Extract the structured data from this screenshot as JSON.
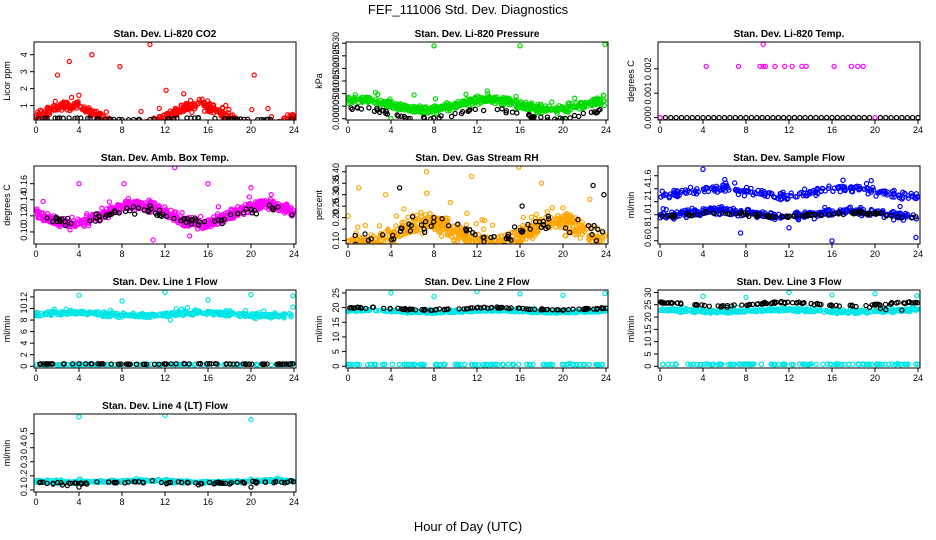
{
  "figure": {
    "title": "FEF_111006  Std. Dev. Diagnostics",
    "xlabel": "Hour of Day (UTC)"
  },
  "chart_data": [
    {
      "type": "scatter",
      "title": "Stan. Dev. Li-820 CO2",
      "ylabel": "Licor ppm",
      "xlim": [
        0,
        24
      ],
      "xticks": [
        0,
        4,
        8,
        12,
        16,
        20,
        24
      ],
      "ylim": [
        0.15,
        4.75
      ],
      "yticks": [
        1,
        2,
        3,
        4
      ],
      "colors": {
        "main": "#ff0000",
        "overlay": "#000000"
      },
      "series": [
        {
          "role": "main",
          "base": 0.3,
          "spread": 0.7,
          "noise": 0.3,
          "n": 520,
          "points": [
            [
              10.6,
              4.6
            ],
            [
              5.2,
              4.0
            ],
            [
              3.1,
              3.6
            ],
            [
              7.8,
              3.3
            ],
            [
              2.0,
              2.8
            ],
            [
              20.3,
              2.8
            ],
            [
              12.1,
              1.9
            ],
            [
              14.5,
              0.6
            ]
          ]
        },
        {
          "role": "overlay",
          "base": 0.22,
          "spread": 0.05,
          "noise": 0.02,
          "n": 60,
          "points": []
        }
      ]
    },
    {
      "type": "scatter",
      "title": "Stan. Dev. Li-820 Pressure",
      "ylabel": "kPa",
      "xlim": [
        0,
        24
      ],
      "xticks": [
        0,
        4,
        8,
        12,
        16,
        20,
        24
      ],
      "ylim": [
        -0.0005,
        0.0305
      ],
      "yticks": [
        0.0,
        0.005,
        0.01,
        0.015,
        0.02,
        0.025,
        0.03
      ],
      "ytick_labels": [
        "0.000",
        "0.005",
        "0.010",
        "0.015",
        "0.020",
        "0.025",
        "0.030"
      ],
      "colors": {
        "main": "#00dd00",
        "overlay": "#000000"
      },
      "series": [
        {
          "role": "main",
          "base": 0.0055,
          "spread": 0.002,
          "noise": 0.0015,
          "n": 560,
          "points": [
            [
              8.0,
              0.029
            ],
            [
              16.0,
              0.029
            ],
            [
              23.9,
              0.0295
            ],
            [
              20.0,
              0.0001
            ],
            [
              4.0,
              0.0001
            ]
          ]
        },
        {
          "role": "overlay",
          "base": 0.002,
          "spread": 0.002,
          "noise": 0.0008,
          "n": 70,
          "points": []
        }
      ]
    },
    {
      "type": "scatter",
      "title": "Stan. Dev. Li-820 Temp.",
      "ylabel": "degrees C",
      "xlim": [
        0,
        24
      ],
      "xticks": [
        0,
        4,
        8,
        12,
        16,
        20,
        24
      ],
      "ylim": [
        -0.0001,
        0.0031
      ],
      "yticks": [
        0.0,
        0.001,
        0.002
      ],
      "ytick_labels": [
        "0.000",
        "0.001",
        "0.002"
      ],
      "colors": {
        "main": "#ff00ff",
        "overlay": "#000000"
      },
      "series": [
        {
          "role": "main",
          "base": 0.0,
          "spread": 0.0,
          "noise": 0.0,
          "n": 0,
          "points": [
            [
              4.3,
              0.0021
            ],
            [
              7.3,
              0.0021
            ],
            [
              9.3,
              0.0021
            ],
            [
              9.6,
              0.0021
            ],
            [
              9.8,
              0.0021
            ],
            [
              10.7,
              0.0021
            ],
            [
              11.6,
              0.0021
            ],
            [
              12.3,
              0.0021
            ],
            [
              13.2,
              0.0021
            ],
            [
              13.6,
              0.0021
            ],
            [
              16.2,
              0.0021
            ],
            [
              17.8,
              0.0021
            ],
            [
              18.4,
              0.0021
            ],
            [
              18.9,
              0.0021
            ],
            [
              9.6,
              0.003
            ],
            [
              0.0,
              0.0
            ],
            [
              20.0,
              0.0
            ]
          ]
        },
        {
          "role": "overlay",
          "base": 0.0,
          "spread": 0.0,
          "noise": 0.0,
          "n": 0,
          "points": [
            [
              0.5,
              0.0
            ],
            [
              1.0,
              0.0
            ],
            [
              1.5,
              0.0
            ],
            [
              2.0,
              0.0
            ],
            [
              2.5,
              0.0
            ],
            [
              3.0,
              0.0
            ],
            [
              3.5,
              0.0
            ],
            [
              4.0,
              0.0
            ],
            [
              4.5,
              0.0
            ],
            [
              5.0,
              0.0
            ],
            [
              5.5,
              0.0
            ],
            [
              6.0,
              0.0
            ],
            [
              6.5,
              0.0
            ],
            [
              7.0,
              0.0
            ],
            [
              7.5,
              0.0
            ],
            [
              8.0,
              0.0
            ],
            [
              8.5,
              0.0
            ],
            [
              9.0,
              0.0
            ],
            [
              9.5,
              0.0
            ],
            [
              10.0,
              0.0
            ],
            [
              10.5,
              0.0
            ],
            [
              11.0,
              0.0
            ],
            [
              11.5,
              0.0
            ],
            [
              12.0,
              0.0
            ],
            [
              12.5,
              0.0
            ],
            [
              13.0,
              0.0
            ],
            [
              13.5,
              0.0
            ],
            [
              14.0,
              0.0
            ],
            [
              14.5,
              0.0
            ],
            [
              15.0,
              0.0
            ],
            [
              15.5,
              0.0
            ],
            [
              16.0,
              0.0
            ],
            [
              16.5,
              0.0
            ],
            [
              17.0,
              0.0
            ],
            [
              17.5,
              0.0
            ],
            [
              18.0,
              0.0
            ],
            [
              18.5,
              0.0
            ],
            [
              19.0,
              0.0
            ],
            [
              19.5,
              0.0
            ],
            [
              20.5,
              0.0
            ],
            [
              21.0,
              0.0
            ],
            [
              21.5,
              0.0
            ],
            [
              22.0,
              0.0
            ],
            [
              22.5,
              0.0
            ],
            [
              23.0,
              0.0
            ],
            [
              23.5,
              0.0
            ],
            [
              24.0,
              0.0
            ]
          ]
        }
      ]
    },
    {
      "type": "scatter",
      "title": "Stan. Dev. Amb. Box Temp.",
      "ylabel": "degrees C",
      "xlim": [
        0,
        24
      ],
      "xticks": [
        0,
        4,
        8,
        12,
        16,
        20,
        24
      ],
      "ylim": [
        0.085,
        0.182
      ],
      "yticks": [
        0.1,
        0.12,
        0.14,
        0.16
      ],
      "ytick_labels": [
        "0.10",
        "0.12",
        "0.14",
        "0.16"
      ],
      "colors": {
        "main": "#ff00ff",
        "overlay": "#000000"
      },
      "series": [
        {
          "role": "main",
          "base": 0.122,
          "spread": 0.012,
          "noise": 0.006,
          "n": 620,
          "points": [
            [
              12.9,
              0.18
            ],
            [
              8.2,
              0.16
            ],
            [
              16.0,
              0.16
            ],
            [
              4.0,
              0.16
            ],
            [
              20.0,
              0.155
            ],
            [
              10.9,
              0.09
            ],
            [
              14.3,
              0.095
            ]
          ]
        },
        {
          "role": "overlay",
          "base": 0.12,
          "spread": 0.008,
          "noise": 0.005,
          "n": 80,
          "points": []
        }
      ]
    },
    {
      "type": "scatter",
      "title": "Stan. Dev. Gas Stream RH",
      "ylabel": "percent",
      "xlim": [
        0,
        24
      ],
      "xticks": [
        0,
        4,
        8,
        12,
        16,
        20,
        24
      ],
      "ylim": [
        0.085,
        0.425
      ],
      "yticks": [
        0.1,
        0.15,
        0.2,
        0.25,
        0.3,
        0.35,
        0.4
      ],
      "ytick_labels": [
        "0.10",
        "",
        "0.20",
        "0.25",
        "0.30",
        "0.35",
        "0.40"
      ],
      "colors": {
        "main": "#ffa500",
        "overlay": "#000000"
      },
      "series": [
        {
          "role": "main",
          "base": 0.13,
          "spread": 0.05,
          "noise": 0.04,
          "n": 600,
          "points": [
            [
              15.9,
              0.42
            ],
            [
              7.3,
              0.4
            ],
            [
              11.5,
              0.38
            ],
            [
              18.0,
              0.35
            ],
            [
              1.0,
              0.33
            ],
            [
              3.5,
              0.3
            ],
            [
              22.5,
              0.28
            ]
          ]
        },
        {
          "role": "overlay",
          "base": 0.14,
          "spread": 0.04,
          "noise": 0.04,
          "n": 70,
          "points": [
            [
              4.8,
              0.33
            ],
            [
              22.8,
              0.34
            ],
            [
              23.8,
              0.3
            ],
            [
              8.0,
              0.2
            ],
            [
              16.2,
              0.25
            ]
          ]
        }
      ]
    },
    {
      "type": "scatter",
      "title": "Stan. Dev. Sample Flow",
      "ylabel": "ml/min",
      "xlim": [
        0,
        24
      ],
      "xticks": [
        0,
        4,
        8,
        12,
        16,
        20,
        24
      ],
      "ylim": [
        0.55,
        1.75
      ],
      "yticks": [
        0.6,
        0.8,
        1.0,
        1.2,
        1.4,
        1.6
      ],
      "ytick_labels": [
        "0.6",
        "0.8",
        "1.0",
        "1.2",
        "1.4",
        "1.6"
      ],
      "colors": {
        "main": "#0000ff",
        "overlay": "#000000"
      },
      "series": [
        {
          "role": "main",
          "base": 1.02,
          "spread": 0.04,
          "noise": 0.05,
          "n": 320,
          "points": []
        },
        {
          "role": "main",
          "base": 1.35,
          "spread": 0.06,
          "noise": 0.06,
          "n": 220,
          "points": [
            [
              4.0,
              1.7
            ],
            [
              16.0,
              0.6
            ],
            [
              23.8,
              0.65
            ],
            [
              7.5,
              0.72
            ],
            [
              12.0,
              0.8
            ]
          ]
        },
        {
          "role": "overlay",
          "base": 1.0,
          "spread": 0.03,
          "noise": 0.025,
          "n": 90,
          "points": []
        }
      ]
    },
    {
      "type": "scatter",
      "title": "Stan. Dev. Line 1 Flow",
      "ylabel": "ml/min",
      "xlim": [
        0,
        24
      ],
      "xticks": [
        0,
        4,
        8,
        12,
        16,
        20,
        24
      ],
      "ylim": [
        -0.3,
        13.2
      ],
      "yticks": [
        0,
        2,
        4,
        6,
        8,
        10,
        12
      ],
      "colors": {
        "main": "#00e5e5",
        "overlay": "#000000"
      },
      "series": [
        {
          "role": "main",
          "base": 9.0,
          "spread": 0.25,
          "noise": 0.35,
          "n": 420,
          "points": [
            [
              4.0,
              12.3
            ],
            [
              8.0,
              11.3
            ],
            [
              12.0,
              12.8
            ],
            [
              16.0,
              11.5
            ],
            [
              20.0,
              12.4
            ],
            [
              23.9,
              12.2
            ],
            [
              0.1,
              0.3
            ],
            [
              12.5,
              8.0
            ]
          ]
        },
        {
          "role": "main",
          "base": 0.3,
          "spread": 0.0,
          "noise": 0.05,
          "n": 120,
          "points": []
        },
        {
          "role": "overlay",
          "base": 0.4,
          "spread": 0.05,
          "noise": 0.05,
          "n": 90,
          "points": []
        }
      ]
    },
    {
      "type": "scatter",
      "title": "Stan. Dev. Line 2 Flow",
      "ylabel": "ml/min",
      "xlim": [
        0,
        24
      ],
      "xticks": [
        0,
        4,
        8,
        12,
        16,
        20,
        24
      ],
      "ylim": [
        -0.6,
        26.0
      ],
      "yticks": [
        0,
        5,
        10,
        15,
        20,
        25
      ],
      "colors": {
        "main": "#00e5e5",
        "overlay": "#000000"
      },
      "series": [
        {
          "role": "main",
          "base": 18.7,
          "spread": 0.3,
          "noise": 0.3,
          "n": 420,
          "points": [
            [
              4.0,
              25.0
            ],
            [
              8.0,
              23.8
            ],
            [
              12.0,
              25.5
            ],
            [
              16.0,
              24.7
            ],
            [
              20.0,
              24.2
            ],
            [
              23.9,
              24.8
            ]
          ]
        },
        {
          "role": "main",
          "base": 0.6,
          "spread": 0.0,
          "noise": 0.1,
          "n": 120,
          "points": []
        },
        {
          "role": "overlay",
          "base": 19.6,
          "spread": 0.4,
          "noise": 0.25,
          "n": 100,
          "points": []
        }
      ]
    },
    {
      "type": "scatter",
      "title": "Stan. Dev. Line 3 Flow",
      "ylabel": "ml/min",
      "xlim": [
        0,
        24
      ],
      "xticks": [
        0,
        4,
        8,
        12,
        16,
        20,
        24
      ],
      "ylim": [
        -0.7,
        31.0
      ],
      "yticks": [
        0,
        5,
        10,
        15,
        20,
        25,
        30
      ],
      "colors": {
        "main": "#00e5e5",
        "overlay": "#000000"
      },
      "series": [
        {
          "role": "main",
          "base": 22.5,
          "spread": 0.4,
          "noise": 0.6,
          "n": 420,
          "points": [
            [
              4.0,
              28.5
            ],
            [
              8.0,
              28.0
            ],
            [
              12.0,
              30.0
            ],
            [
              16.0,
              29.0
            ],
            [
              20.0,
              29.5
            ],
            [
              23.9,
              28.7
            ]
          ]
        },
        {
          "role": "main",
          "base": 0.8,
          "spread": 0.0,
          "noise": 0.15,
          "n": 120,
          "points": []
        },
        {
          "role": "overlay",
          "base": 25.2,
          "spread": 0.7,
          "noise": 0.4,
          "n": 100,
          "points": [
            [
              19.5,
              24.0
            ],
            [
              20.5,
              23.5
            ],
            [
              21.0,
              23.0
            ],
            [
              22.5,
              22.8
            ]
          ]
        }
      ]
    },
    {
      "type": "scatter",
      "title": "Stan. Dev. Line 4 (LT) Flow",
      "ylabel": "ml/min",
      "xlim": [
        0,
        24
      ],
      "xticks": [
        0,
        4,
        8,
        12,
        16,
        20,
        24
      ],
      "ylim": [
        0.085,
        0.64
      ],
      "yticks": [
        0.1,
        0.2,
        0.3,
        0.4,
        0.5
      ],
      "ytick_labels": [
        "0.1",
        "0.2",
        "0.3",
        "0.4",
        "0.5"
      ],
      "colors": {
        "main": "#00e5e5",
        "overlay": "#000000"
      },
      "series": [
        {
          "role": "main",
          "base": 0.16,
          "spread": 0.005,
          "noise": 0.008,
          "n": 380,
          "points": [
            [
              4.0,
              0.62
            ],
            [
              12.0,
              0.63
            ],
            [
              20.0,
              0.6
            ]
          ]
        },
        {
          "role": "overlay",
          "base": 0.15,
          "spread": 0.005,
          "noise": 0.01,
          "n": 80,
          "points": [
            [
              4.0,
              0.12
            ],
            [
              20.0,
              0.12
            ]
          ]
        }
      ]
    }
  ]
}
